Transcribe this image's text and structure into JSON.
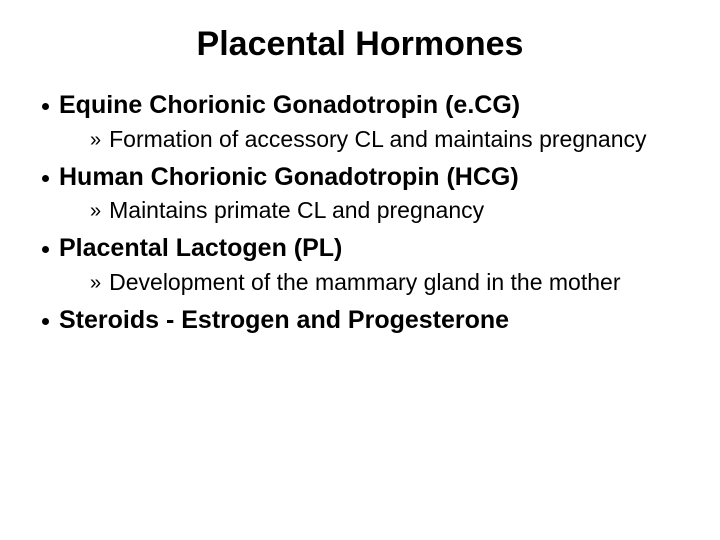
{
  "title": "Placental Hormones",
  "items": [
    {
      "heading": "Equine Chorionic Gonadotropin (e.CG)",
      "sub": "Formation of accessory CL and maintains pregnancy"
    },
    {
      "heading": "Human Chorionic Gonadotropin (HCG)",
      "sub": "Maintains primate CL and pregnancy"
    },
    {
      "heading": "Placental Lactogen (PL)",
      "sub": "Development of the mammary gland in the mother"
    },
    {
      "heading": "Steroids - Estrogen and Progesterone",
      "sub": null
    }
  ],
  "style": {
    "background_color": "#ffffff",
    "text_color": "#000000",
    "title_font": "Arial",
    "title_fontsize": 34,
    "title_weight": "bold",
    "body_font": "Comic Sans MS",
    "bullet_fontsize": 25,
    "bullet_weight": "bold",
    "sub_fontsize": 23,
    "sub_weight": "normal",
    "bullet_marker": "dot",
    "sub_marker": "double-chevron"
  }
}
